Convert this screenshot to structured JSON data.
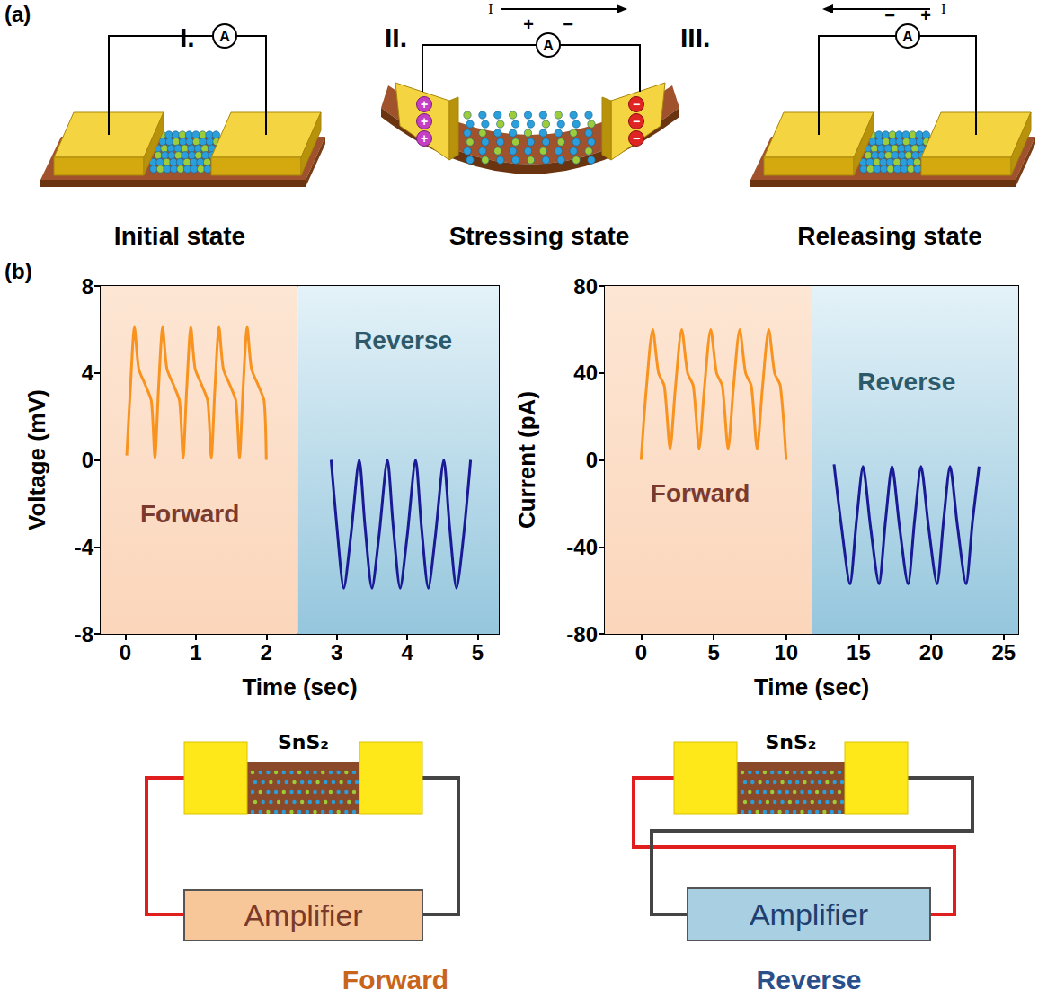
{
  "panel_labels": [
    "(a)",
    "(b)"
  ],
  "panel_a": {
    "states": [
      {
        "numeral": "I.",
        "caption": "Initial state",
        "meter": "A"
      },
      {
        "numeral": "II.",
        "caption": "Stressing state",
        "meter": "A",
        "meter_signs": [
          "+",
          "−"
        ],
        "current": "I",
        "charges": [
          "+",
          "−"
        ]
      },
      {
        "numeral": "III.",
        "caption": "Releasing state",
        "meter": "A",
        "meter_signs": [
          "−",
          "+"
        ],
        "current": "I"
      }
    ]
  },
  "chart_data": [
    {
      "type": "line",
      "x_label": "Time (sec)",
      "y_label": "Voltage (mV)",
      "xlim": [
        -0.35,
        5.3
      ],
      "xticks": [
        0,
        1,
        2,
        3,
        4,
        5
      ],
      "ylim": [
        -8,
        8
      ],
      "yticks": [
        -8,
        -4,
        0,
        4,
        8
      ],
      "regions": [
        {
          "label": "Forward",
          "from": -0.35,
          "to": 2.45
        },
        {
          "label": "Reverse",
          "from": 2.45,
          "to": 5.3
        }
      ],
      "series": [
        {
          "name": "Forward",
          "color": "#f7931e",
          "x": [
            0.02,
            0.07,
            0.13,
            0.19,
            0.29,
            0.37,
            0.42,
            0.47,
            0.53,
            0.59,
            0.69,
            0.77,
            0.82,
            0.87,
            0.93,
            0.99,
            1.09,
            1.17,
            1.22,
            1.27,
            1.33,
            1.39,
            1.49,
            1.57,
            1.62,
            1.67,
            1.73,
            1.79,
            1.89,
            1.97,
            2.0
          ],
          "values": [
            0.2,
            3.2,
            6.1,
            4.2,
            3.4,
            2.7,
            0.1,
            3.2,
            6.1,
            4.2,
            3.4,
            2.7,
            0.1,
            3.2,
            6.1,
            4.2,
            3.4,
            2.7,
            0.1,
            3.2,
            6.1,
            4.2,
            3.4,
            2.7,
            0.1,
            3.2,
            6.1,
            4.2,
            3.4,
            2.7,
            0
          ]
        },
        {
          "name": "Reverse",
          "color": "#1a1a96",
          "x": [
            2.92,
            3.0,
            3.1,
            3.2,
            3.32,
            3.4,
            3.5,
            3.6,
            3.72,
            3.8,
            3.9,
            4.0,
            4.12,
            4.2,
            4.3,
            4.4,
            4.52,
            4.6,
            4.7,
            4.8,
            4.9
          ],
          "values": [
            0,
            -3.0,
            -5.9,
            -3.5,
            0,
            -3.0,
            -5.9,
            -3.5,
            0,
            -3.0,
            -5.9,
            -3.5,
            0,
            -3.0,
            -5.9,
            -3.5,
            0,
            -3.0,
            -5.9,
            -3.5,
            0
          ]
        }
      ]
    },
    {
      "type": "line",
      "x_label": "Time (sec)",
      "y_label": "Current (pA)",
      "xlim": [
        -2.5,
        26
      ],
      "xticks": [
        0,
        5,
        10,
        15,
        20,
        25
      ],
      "ylim": [
        -80,
        80
      ],
      "yticks": [
        -80,
        -40,
        0,
        40,
        80
      ],
      "regions": [
        {
          "label": "Forward",
          "from": -2.5,
          "to": 11.8
        },
        {
          "label": "Reverse",
          "from": 11.8,
          "to": 26
        }
      ],
      "series": [
        {
          "name": "Forward",
          "color": "#f7931e",
          "x": [
            0,
            0.35,
            0.8,
            1.2,
            1.6,
            2.0,
            2.35,
            2.8,
            3.2,
            3.6,
            4.0,
            4.35,
            4.8,
            5.2,
            5.6,
            6.0,
            6.35,
            6.8,
            7.2,
            7.6,
            8.0,
            8.35,
            8.8,
            9.2,
            9.6,
            10.0
          ],
          "values": [
            0,
            32,
            60,
            40,
            34,
            5,
            32,
            60,
            40,
            34,
            5,
            32,
            60,
            40,
            34,
            5,
            32,
            60,
            40,
            34,
            5,
            32,
            60,
            40,
            34,
            0
          ]
        },
        {
          "name": "Reverse",
          "color": "#1a1a96",
          "x": [
            13.3,
            13.8,
            14.4,
            14.85,
            15.3,
            15.8,
            16.4,
            16.85,
            17.3,
            17.8,
            18.4,
            18.85,
            19.3,
            19.8,
            20.4,
            20.85,
            21.3,
            21.8,
            22.4,
            22.85,
            23.3
          ],
          "values": [
            -2,
            -30,
            -57,
            -28,
            -3,
            -30,
            -57,
            -28,
            -3,
            -30,
            -57,
            -28,
            -3,
            -30,
            -57,
            -28,
            -3,
            -30,
            -57,
            -28,
            -3
          ]
        }
      ]
    }
  ],
  "circuits": [
    {
      "device": "SnS₂",
      "box": "Amplifier",
      "caption": "Forward"
    },
    {
      "device": "SnS₂",
      "box": "Amplifier",
      "caption": "Reverse"
    }
  ]
}
